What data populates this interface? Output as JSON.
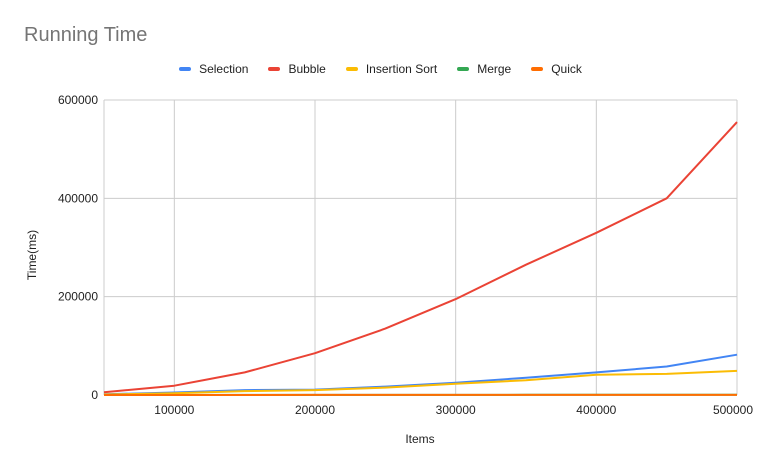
{
  "chart_data": {
    "type": "line",
    "title": "Running Time",
    "xlabel": "Items",
    "ylabel": "Time(ms)",
    "x": [
      50000,
      100000,
      150000,
      200000,
      250000,
      300000,
      350000,
      400000,
      450000,
      500000
    ],
    "xlim": [
      50000,
      500000
    ],
    "ylim": [
      0,
      600000
    ],
    "xticks": [
      100000,
      200000,
      300000,
      400000,
      500000
    ],
    "yticks": [
      0,
      200000,
      400000,
      600000
    ],
    "grid": true,
    "legend_position": "top",
    "series": [
      {
        "name": "Selection",
        "color": "#4285F4",
        "values": [
          1500,
          5000,
          10000,
          11000,
          17000,
          25000,
          35000,
          46000,
          58000,
          82000
        ]
      },
      {
        "name": "Bubble",
        "color": "#EA4335",
        "values": [
          5500,
          19000,
          46000,
          85000,
          135000,
          195000,
          265000,
          330000,
          400000,
          555000
        ]
      },
      {
        "name": "Insertion Sort",
        "color": "#FBBC04",
        "values": [
          1000,
          3500,
          8000,
          10000,
          15000,
          23000,
          30000,
          41000,
          43000,
          49000
        ]
      },
      {
        "name": "Merge",
        "color": "#34A853",
        "values": [
          50,
          100,
          150,
          200,
          250,
          300,
          350,
          400,
          450,
          500
        ]
      },
      {
        "name": "Quick",
        "color": "#FF6D01",
        "values": [
          30,
          60,
          90,
          120,
          150,
          180,
          210,
          240,
          270,
          300
        ]
      }
    ]
  }
}
